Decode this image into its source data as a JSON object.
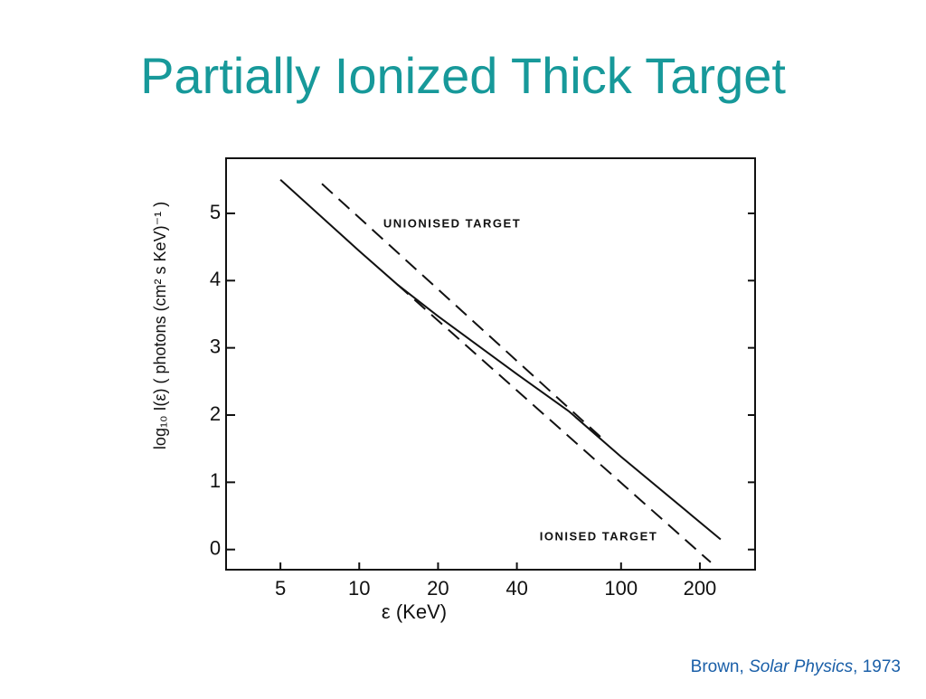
{
  "slide": {
    "title": "Partially Ionized Thick Target",
    "citation": [
      "Brown, ",
      "Solar Physics",
      ", 1973"
    ]
  },
  "chart_data": {
    "type": "line",
    "xscale": "log",
    "x_label": "ε (KeV)",
    "y_label": "log₁₀ I(ε)   ( photons (cm² s KeV)⁻¹ )",
    "xlim": [
      3.1,
      325
    ],
    "ylim": [
      -0.3,
      5.82
    ],
    "xticks": [
      5,
      10,
      20,
      40,
      100,
      200
    ],
    "yticks": [
      0,
      1,
      2,
      3,
      4,
      5
    ],
    "series": [
      {
        "color": "#111111",
        "dash": false,
        "x": [
          5,
          10,
          14,
          20,
          40,
          63,
          100,
          240
        ],
        "values": [
          5.5,
          4.44,
          3.94,
          3.47,
          2.61,
          2.06,
          1.38,
          0.15
        ]
      },
      {
        "name": "UNIONISED TARGET",
        "color": "#111111",
        "dash": true,
        "x": [
          7.2,
          86
        ],
        "values": [
          5.44,
          1.63
        ]
      },
      {
        "name": "IONISED TARGET",
        "color": "#111111",
        "dash": true,
        "x": [
          14,
          220
        ],
        "values": [
          3.94,
          -0.19
        ]
      }
    ]
  }
}
